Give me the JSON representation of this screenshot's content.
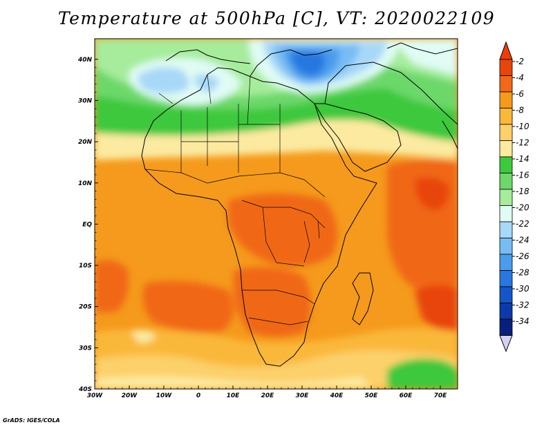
{
  "title": "Temperature at 500hPa [C], VT: 2020022109",
  "credit": "GrADS: IGES/COLA",
  "map": {
    "lon_labels": [
      "30W",
      "20W",
      "10W",
      "0",
      "10E",
      "20E",
      "30E",
      "40E",
      "50E",
      "60E",
      "70E"
    ],
    "lat_labels": [
      "40N",
      "30N",
      "20N",
      "10N",
      "EQ",
      "10S",
      "20S",
      "30S",
      "40S"
    ],
    "lon_range": [
      -30,
      75
    ],
    "lat_range": [
      -40,
      45
    ]
  },
  "colorbar": {
    "labels": [
      "-2",
      "-4",
      "-6",
      "-8",
      "-10",
      "-12",
      "-14",
      "-16",
      "-18",
      "-20",
      "-22",
      "-24",
      "-26",
      "-28",
      "-30",
      "-32",
      "-34"
    ],
    "colors": [
      "#e8440c",
      "#f06818",
      "#f59a1c",
      "#fab83a",
      "#fcd06a",
      "#fceaa0",
      "#3ec83e",
      "#6cd86a",
      "#a6ec9c",
      "#e0fcf4",
      "#a8d8f8",
      "#78bcf4",
      "#4a9cec",
      "#2878e0",
      "#1456c8",
      "#0c3aa8",
      "#08207a"
    ],
    "top_color": "#f03d05",
    "bottom_color": "#d8d0f4"
  }
}
